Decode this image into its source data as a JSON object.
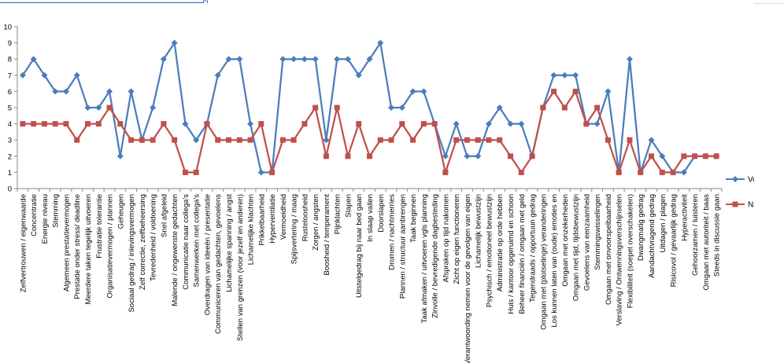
{
  "colors": {
    "voor": "#4a7ebb",
    "na": "#c0504d",
    "axis": "#868686",
    "grid_cells": "#d8dde6",
    "selection": "#4472c4"
  },
  "chart_data": {
    "type": "line",
    "title": "",
    "xlabel": "",
    "ylabel": "",
    "ylim": [
      0,
      10
    ],
    "yticks": [
      0,
      1,
      2,
      3,
      4,
      5,
      6,
      7,
      8,
      9,
      10
    ],
    "grid": false,
    "legend": "right",
    "categories": [
      "Zelfvertrouwen / eigenwaarde",
      "Concentratie",
      "Energie niveau",
      "Stemming",
      "Algemeen prestatievermogen",
      "Prestatie onder stress/ deadline",
      "Meerdere taken tegelijk uitvoeren",
      "Frustratie tolerantie",
      "Organisatievermogen / plannen",
      "Geheugen",
      "Sociaal gedrag / inlevingsvermogen",
      "Zelf correctie, zelfbeheersing",
      "Tevredenheid / voldoening",
      "Snel afgeleid",
      "Malende / ongewenste gedachten",
      "Communicatie naar collega's",
      "Samenwerken met collega's",
      "Overdragen van ideeën / presentatie",
      "Communiceren van gedachten, gevoelens",
      "Lichamelijke spanning / angst",
      "Stellen van grenzen (voor jezelf en anderen)",
      "Lichamelijke klachten",
      "Prikkelbaarheid",
      "Hyperventilatie",
      "Vermoeidheid",
      "Spijsvertering / maag",
      "Rusteloosheid",
      "Zorgen / angsten",
      "Boosheid / temperament",
      "Pijnklachten",
      "Slapen",
      "Uitstelgedrag bij naar bed gaan",
      "In slaap vallen",
      "Doorslapen",
      "Dromen / nachtmerries",
      "Plannen / structuur aanbrengen",
      "Taak beginnen",
      "Taak afmaken / uitvoeren vgls planning",
      "Zinvolle / bevredigende dagbesteding",
      "Afspraken op tijd nakomen",
      "Zicht op eigen functioneren",
      "Verantwoording nemen voor de gevolgen van eigen",
      "Lichamelijk bewustzijn",
      "Psychisch / emotioneel bewustzijn",
      "Administratie op orde hebben",
      "Huis / kantoor opgeruimd en schoon",
      "Beheer financiën / omgaan met geld",
      "Tegendraads / opportuun gedrag",
      "Omgaan met (plotselinge) veranderingen",
      "Los kunnen laten van (oude) emoties en",
      "Omgaan met onzekerheden",
      "Omgaan met tijd, tijdsbewustzijn",
      "Gevoelens van eenzaamheid",
      "Stemmingswisselingen",
      "Omgaan met onvoorspelbaarheid",
      "Verslaving / Ontwenningsverschijnselen",
      "Flexibiliteit (soepel overschakelen)",
      "Dwangmatig gedrag",
      "Aandachtvragend gedrag",
      "Uitdagen / plagen",
      "Risicovol / gevaarlijk gedrag",
      "Hyperactiviteit",
      "Gehoorzamen / luisteren",
      "Omgaan met autoriteit / baas",
      "Steeds in discussie gaan"
    ],
    "series": [
      {
        "name": "Voor",
        "color": "#4a7ebb",
        "marker": "diamond",
        "values": [
          7,
          8,
          7,
          6,
          6,
          7,
          5,
          5,
          6,
          2,
          6,
          3,
          5,
          8,
          9,
          4,
          3,
          4,
          7,
          8,
          8,
          4,
          1,
          1,
          8,
          8,
          8,
          8,
          3,
          8,
          8,
          7,
          8,
          9,
          5,
          5,
          6,
          6,
          4,
          2,
          4,
          2,
          2,
          4,
          5,
          4,
          4,
          2,
          5,
          7,
          7,
          7,
          4,
          4,
          6,
          1,
          8,
          1,
          3,
          2,
          1,
          1,
          2,
          2,
          2
        ]
      },
      {
        "name": "Na",
        "color": "#c0504d",
        "marker": "square",
        "values": [
          4,
          4,
          4,
          4,
          4,
          3,
          4,
          4,
          5,
          4,
          3,
          3,
          3,
          4,
          3,
          1,
          1,
          4,
          3,
          3,
          3,
          3,
          4,
          1,
          3,
          3,
          4,
          5,
          2,
          5,
          2,
          4,
          2,
          3,
          3,
          4,
          3,
          4,
          4,
          1,
          3,
          3,
          3,
          3,
          3,
          2,
          1,
          2,
          5,
          6,
          5,
          6,
          4,
          5,
          3,
          1,
          3,
          1,
          2,
          1,
          1,
          2,
          2,
          2,
          2
        ]
      }
    ]
  }
}
